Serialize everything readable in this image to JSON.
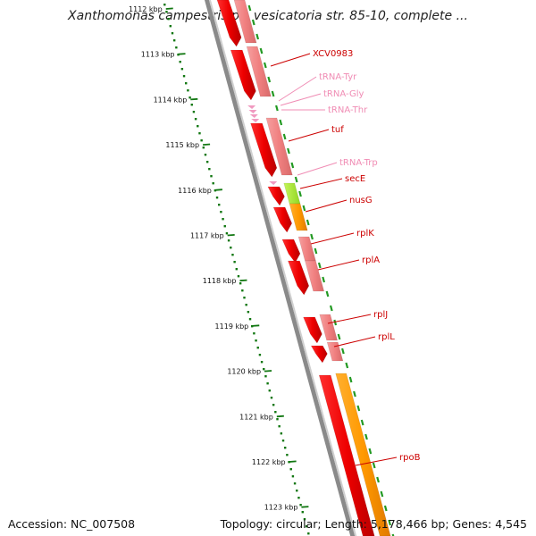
{
  "title": "Xanthomonas campestris pv. vesicatoria str. 85-10, complete ...",
  "footer": {
    "accession": "Accession: NC_007508",
    "topology": "Topology: circular; Length: 5,178,466 bp; Genes: 4,545"
  },
  "ruler": {
    "ticks": [
      "1112 kbp",
      "1113 kbp",
      "1114 kbp",
      "1115 kbp",
      "1116 kbp",
      "1117 kbp",
      "1118 kbp",
      "1119 kbp",
      "1120 kbp",
      "1121 kbp",
      "1122 kbp",
      "1123 kbp"
    ]
  },
  "genes": [
    {
      "label": "XCV0983",
      "kind": "protein"
    },
    {
      "label": "tRNA-Tyr",
      "kind": "trna"
    },
    {
      "label": "tRNA-Gly",
      "kind": "trna"
    },
    {
      "label": "tRNA-Thr",
      "kind": "trna"
    },
    {
      "label": "tuf",
      "kind": "protein"
    },
    {
      "label": "tRNA-Trp",
      "kind": "trna"
    },
    {
      "label": "secE",
      "kind": "protein"
    },
    {
      "label": "nusG",
      "kind": "protein"
    },
    {
      "label": "rplK",
      "kind": "protein"
    },
    {
      "label": "rplA",
      "kind": "protein"
    },
    {
      "label": "rplJ",
      "kind": "protein"
    },
    {
      "label": "rplL",
      "kind": "protein"
    },
    {
      "label": "rpoB",
      "kind": "protein"
    }
  ],
  "colors": {
    "protein_label": "#cc0000",
    "trna_label": "#f08cb4",
    "gene_red": "#ee0000",
    "gene_pink": "#f08080",
    "gene_green": "#aaee33",
    "gene_orange": "#ff9900",
    "backbone": "#888888",
    "ruler_green": "#117711"
  }
}
